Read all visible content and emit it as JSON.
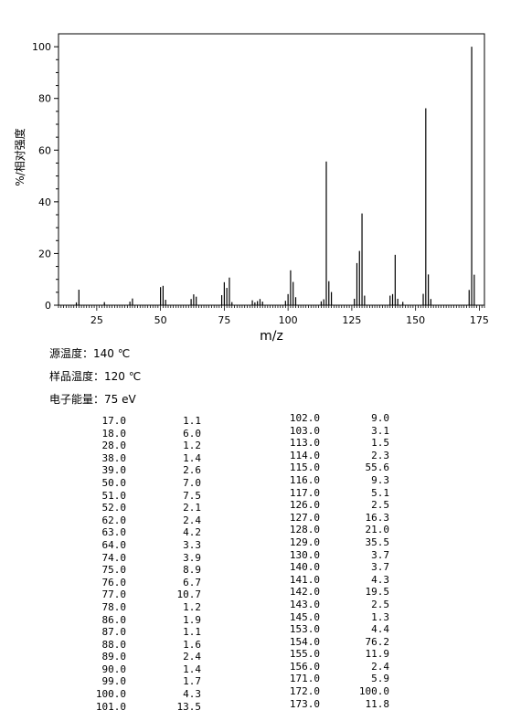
{
  "chart_data": {
    "type": "bar",
    "title": "",
    "xlabel": "m/z",
    "ylabel": "%/相对强度",
    "xlim": [
      10,
      177
    ],
    "ylim": [
      0,
      105
    ],
    "x_ticks": [
      25,
      50,
      75,
      100,
      125,
      150,
      175
    ],
    "y_ticks": [
      0,
      20,
      40,
      60,
      80,
      100
    ],
    "grid": false,
    "peaks": [
      {
        "mz": 17.0,
        "intensity": 1.1
      },
      {
        "mz": 18.0,
        "intensity": 6.0
      },
      {
        "mz": 28.0,
        "intensity": 1.2
      },
      {
        "mz": 38.0,
        "intensity": 1.4
      },
      {
        "mz": 39.0,
        "intensity": 2.6
      },
      {
        "mz": 50.0,
        "intensity": 7.0
      },
      {
        "mz": 51.0,
        "intensity": 7.5
      },
      {
        "mz": 52.0,
        "intensity": 2.1
      },
      {
        "mz": 62.0,
        "intensity": 2.4
      },
      {
        "mz": 63.0,
        "intensity": 4.2
      },
      {
        "mz": 64.0,
        "intensity": 3.3
      },
      {
        "mz": 74.0,
        "intensity": 3.9
      },
      {
        "mz": 75.0,
        "intensity": 8.9
      },
      {
        "mz": 76.0,
        "intensity": 6.7
      },
      {
        "mz": 77.0,
        "intensity": 10.7
      },
      {
        "mz": 78.0,
        "intensity": 1.2
      },
      {
        "mz": 86.0,
        "intensity": 1.9
      },
      {
        "mz": 87.0,
        "intensity": 1.1
      },
      {
        "mz": 88.0,
        "intensity": 1.6
      },
      {
        "mz": 89.0,
        "intensity": 2.4
      },
      {
        "mz": 90.0,
        "intensity": 1.4
      },
      {
        "mz": 99.0,
        "intensity": 1.7
      },
      {
        "mz": 100.0,
        "intensity": 4.3
      },
      {
        "mz": 101.0,
        "intensity": 13.5
      },
      {
        "mz": 102.0,
        "intensity": 9.0
      },
      {
        "mz": 103.0,
        "intensity": 3.1
      },
      {
        "mz": 113.0,
        "intensity": 1.5
      },
      {
        "mz": 114.0,
        "intensity": 2.3
      },
      {
        "mz": 115.0,
        "intensity": 55.6
      },
      {
        "mz": 116.0,
        "intensity": 9.3
      },
      {
        "mz": 117.0,
        "intensity": 5.1
      },
      {
        "mz": 126.0,
        "intensity": 2.5
      },
      {
        "mz": 127.0,
        "intensity": 16.3
      },
      {
        "mz": 128.0,
        "intensity": 21.0
      },
      {
        "mz": 129.0,
        "intensity": 35.5
      },
      {
        "mz": 130.0,
        "intensity": 3.7
      },
      {
        "mz": 140.0,
        "intensity": 3.7
      },
      {
        "mz": 141.0,
        "intensity": 4.3
      },
      {
        "mz": 142.0,
        "intensity": 19.5
      },
      {
        "mz": 143.0,
        "intensity": 2.5
      },
      {
        "mz": 145.0,
        "intensity": 1.3
      },
      {
        "mz": 153.0,
        "intensity": 4.4
      },
      {
        "mz": 154.0,
        "intensity": 76.2
      },
      {
        "mz": 155.0,
        "intensity": 11.9
      },
      {
        "mz": 156.0,
        "intensity": 2.4
      },
      {
        "mz": 171.0,
        "intensity": 5.9
      },
      {
        "mz": 172.0,
        "intensity": 100.0
      },
      {
        "mz": 173.0,
        "intensity": 11.8
      }
    ]
  },
  "conditions": {
    "source_temp": "源温度：140 ℃",
    "sample_temp": "样品温度：120 ℃",
    "electron_energy": "电子能量：75 eV"
  },
  "table": {
    "col1": [
      [
        "17.0",
        "1.1"
      ],
      [
        "18.0",
        "6.0"
      ],
      [
        "28.0",
        "1.2"
      ],
      [
        "38.0",
        "1.4"
      ],
      [
        "39.0",
        "2.6"
      ],
      [
        "50.0",
        "7.0"
      ],
      [
        "51.0",
        "7.5"
      ],
      [
        "52.0",
        "2.1"
      ],
      [
        "62.0",
        "2.4"
      ],
      [
        "63.0",
        "4.2"
      ],
      [
        "64.0",
        "3.3"
      ],
      [
        "74.0",
        "3.9"
      ],
      [
        "75.0",
        "8.9"
      ],
      [
        "76.0",
        "6.7"
      ],
      [
        "77.0",
        "10.7"
      ],
      [
        "78.0",
        "1.2"
      ],
      [
        "86.0",
        "1.9"
      ],
      [
        "87.0",
        "1.1"
      ],
      [
        "88.0",
        "1.6"
      ],
      [
        "89.0",
        "2.4"
      ],
      [
        "90.0",
        "1.4"
      ],
      [
        "99.0",
        "1.7"
      ],
      [
        "100.0",
        "4.3"
      ],
      [
        "101.0",
        "13.5"
      ]
    ],
    "col2": [
      [
        "102.0",
        "9.0"
      ],
      [
        "103.0",
        "3.1"
      ],
      [
        "113.0",
        "1.5"
      ],
      [
        "114.0",
        "2.3"
      ],
      [
        "115.0",
        "55.6"
      ],
      [
        "116.0",
        "9.3"
      ],
      [
        "117.0",
        "5.1"
      ],
      [
        "126.0",
        "2.5"
      ],
      [
        "127.0",
        "16.3"
      ],
      [
        "128.0",
        "21.0"
      ],
      [
        "129.0",
        "35.5"
      ],
      [
        "130.0",
        "3.7"
      ],
      [
        "140.0",
        "3.7"
      ],
      [
        "141.0",
        "4.3"
      ],
      [
        "142.0",
        "19.5"
      ],
      [
        "143.0",
        "2.5"
      ],
      [
        "145.0",
        "1.3"
      ],
      [
        "153.0",
        "4.4"
      ],
      [
        "154.0",
        "76.2"
      ],
      [
        "155.0",
        "11.9"
      ],
      [
        "156.0",
        "2.4"
      ],
      [
        "171.0",
        "5.9"
      ],
      [
        "172.0",
        "100.0"
      ],
      [
        "173.0",
        "11.8"
      ]
    ]
  }
}
